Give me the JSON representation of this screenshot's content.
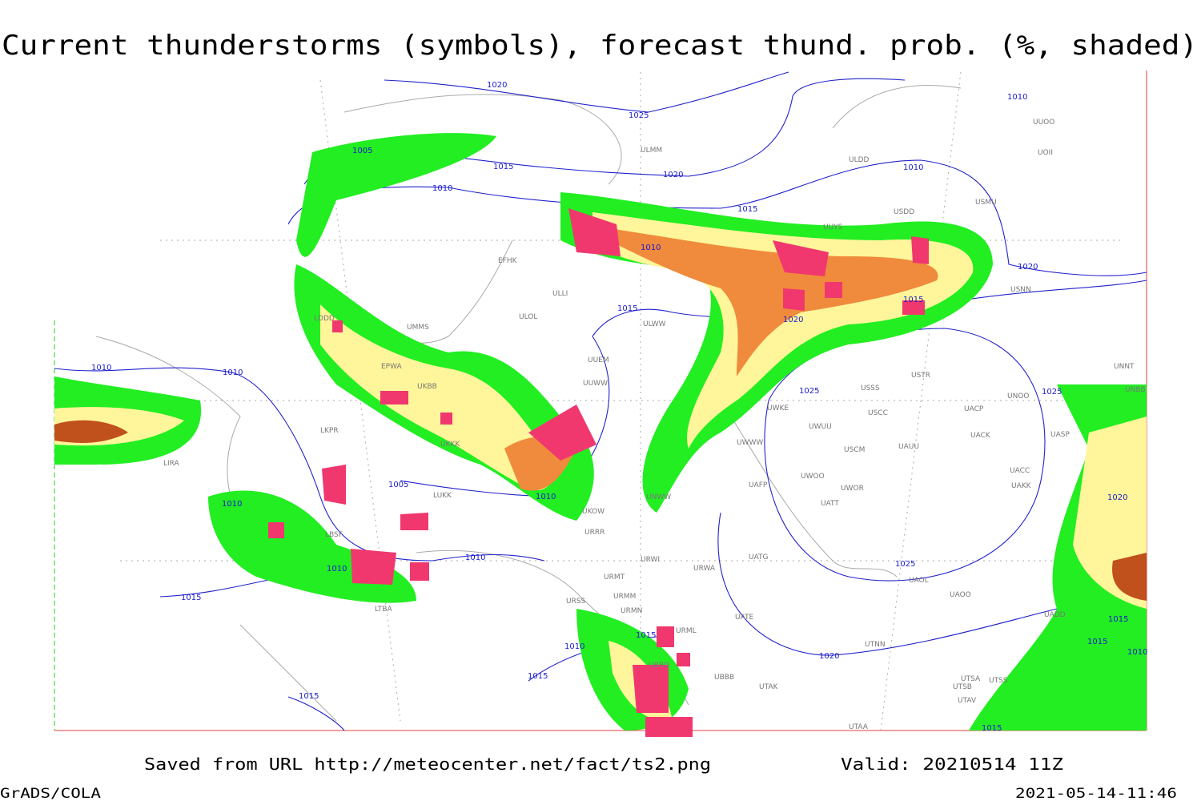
{
  "header": {
    "title": "Current thunderstorms (symbols), forecast thund. prob. (%, shaded)"
  },
  "map": {
    "isobar_labels": [
      "1020",
      "1025",
      "1005",
      "1015",
      "1010",
      "1020",
      "1015",
      "1010",
      "1010",
      "1010",
      "1020",
      "1015",
      "1015",
      "1020",
      "1010",
      "1010",
      "1025",
      "1025",
      "1005",
      "1010",
      "1010",
      "1020",
      "1010",
      "1010",
      "1015",
      "1025",
      "1015",
      "1010",
      "1015",
      "1015",
      "1020",
      "1015",
      "1015",
      "1010",
      "1015"
    ],
    "stations": [
      "UUOO",
      "UOII",
      "ULMM",
      "ULDD",
      "USMU",
      "USDD",
      "UUYS",
      "EFHK",
      "ULLI",
      "ULOL",
      "UMMS",
      "UUEM",
      "ULWW",
      "UUWW",
      "EPWA",
      "UKBB",
      "UKKK",
      "LKPR",
      "LIRA",
      "LUKK",
      "LBSF",
      "LTBA",
      "UKOW",
      "URRR",
      "URWI",
      "URWA",
      "URMT",
      "URMM",
      "URMN",
      "URSS",
      "URML",
      "UBBB",
      "UTAK",
      "UWWW",
      "UWKE",
      "UWUU",
      "USCM",
      "UAUU",
      "USCC",
      "UACK",
      "UACC",
      "UAKK",
      "UASP",
      "UNOO",
      "UACP",
      "UATG",
      "UATE",
      "UAOL",
      "UAOO",
      "UADD",
      "UTSA",
      "UTSS",
      "UTSB",
      "UTAV",
      "UTAA",
      "UTNN",
      "USSS",
      "USTR",
      "UNNT",
      "UNBB",
      "USNN",
      "UWOO",
      "UWOR",
      "UATT",
      "UAFP",
      "LDDD",
      "UNWW",
      "UBBQ"
    ]
  },
  "footer": {
    "source": "Saved from URL http://meteocenter.net/fact/ts2.png",
    "valid": "Valid: 20210514 11Z",
    "software": "GrADS/COLA",
    "timestamp": "2021-05-14-11:46"
  }
}
